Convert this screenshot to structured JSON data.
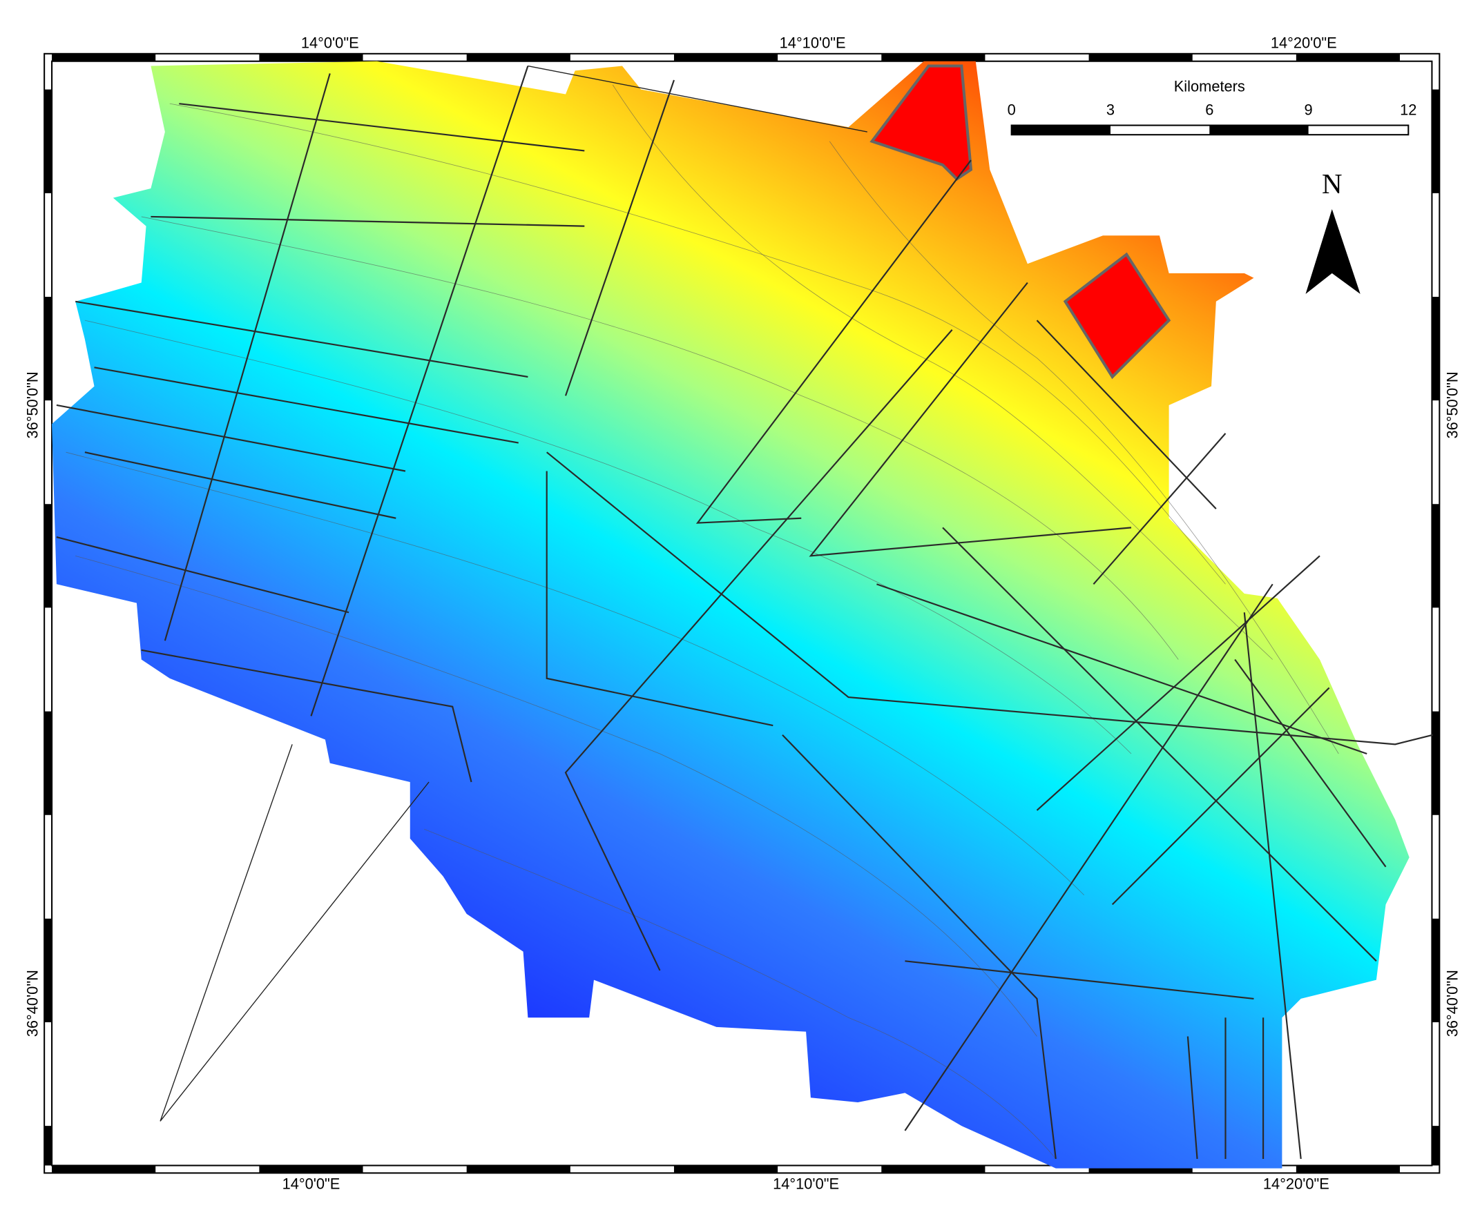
{
  "map": {
    "top_labels": [
      "14°0'0\"E",
      "14°10'0\"E",
      "14°20'0\"E"
    ],
    "bottom_labels": [
      "14°0'0\"E",
      "14°10'0\"E",
      "14°20'0\"E"
    ],
    "left_labels": [
      "36°50'0\"N",
      "36°40'0\"N"
    ],
    "right_labels": [
      "36°50'0\"N",
      "36°40'0\"N"
    ],
    "scale_bar": {
      "title": "Kilometers",
      "ticks": [
        "0",
        "3",
        "6",
        "9",
        "12"
      ]
    },
    "north_arrow": "N"
  }
}
